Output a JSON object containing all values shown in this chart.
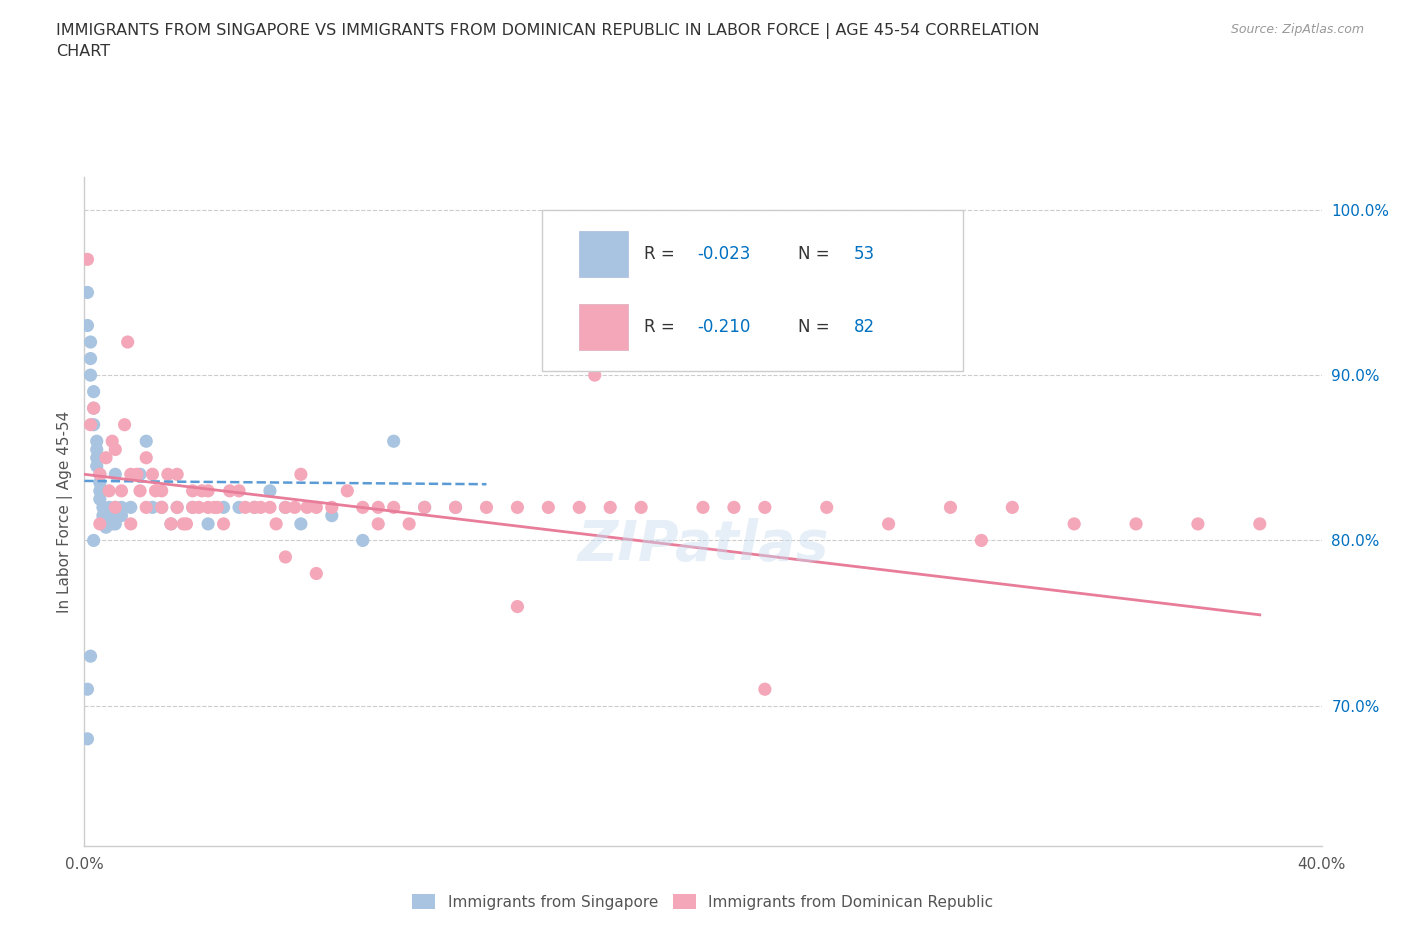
{
  "title": "IMMIGRANTS FROM SINGAPORE VS IMMIGRANTS FROM DOMINICAN REPUBLIC IN LABOR FORCE | AGE 45-54 CORRELATION\nCHART",
  "source": "Source: ZipAtlas.com",
  "ylabel": "In Labor Force | Age 45-54",
  "xlim": [
    0.0,
    0.4
  ],
  "ylim": [
    0.615,
    1.02
  ],
  "xticks": [
    0.0,
    0.05,
    0.1,
    0.15,
    0.2,
    0.25,
    0.3,
    0.35,
    0.4
  ],
  "ytick_labels_right": [
    "100.0%",
    "90.0%",
    "80.0%",
    "70.0%"
  ],
  "yticks_right": [
    1.0,
    0.9,
    0.8,
    0.7
  ],
  "series1_name": "Immigrants from Singapore",
  "series1_color": "#a8c4e0",
  "series1_line_color": "#5b9bd5",
  "series2_name": "Immigrants from Dominican Republic",
  "series2_color": "#f4a7b9",
  "series2_line_color": "#e87d9a",
  "watermark": "ZIPatlas",
  "background_color": "#ffffff",
  "series1_x": [
    0.001,
    0.001,
    0.002,
    0.002,
    0.002,
    0.003,
    0.003,
    0.003,
    0.004,
    0.004,
    0.004,
    0.004,
    0.005,
    0.005,
    0.005,
    0.005,
    0.006,
    0.006,
    0.007,
    0.007,
    0.008,
    0.008,
    0.009,
    0.009,
    0.01,
    0.01,
    0.01,
    0.012,
    0.012,
    0.015,
    0.018,
    0.02,
    0.022,
    0.025,
    0.028,
    0.03,
    0.035,
    0.04,
    0.045,
    0.05,
    0.055,
    0.06,
    0.065,
    0.07,
    0.08,
    0.09,
    0.1,
    0.11,
    0.12,
    0.002,
    0.001,
    0.001,
    0.003
  ],
  "series1_y": [
    0.95,
    0.93,
    0.92,
    0.91,
    0.9,
    0.89,
    0.88,
    0.87,
    0.86,
    0.855,
    0.85,
    0.845,
    0.84,
    0.835,
    0.83,
    0.825,
    0.82,
    0.815,
    0.81,
    0.808,
    0.82,
    0.815,
    0.815,
    0.81,
    0.84,
    0.82,
    0.81,
    0.82,
    0.815,
    0.82,
    0.84,
    0.86,
    0.82,
    0.82,
    0.81,
    0.82,
    0.82,
    0.81,
    0.82,
    0.82,
    0.82,
    0.83,
    0.82,
    0.81,
    0.815,
    0.8,
    0.86,
    0.82,
    0.82,
    0.73,
    0.71,
    0.68,
    0.8
  ],
  "series2_x": [
    0.001,
    0.002,
    0.003,
    0.005,
    0.005,
    0.007,
    0.008,
    0.009,
    0.01,
    0.01,
    0.012,
    0.013,
    0.014,
    0.015,
    0.015,
    0.017,
    0.018,
    0.02,
    0.02,
    0.022,
    0.023,
    0.025,
    0.025,
    0.027,
    0.028,
    0.03,
    0.03,
    0.032,
    0.033,
    0.035,
    0.035,
    0.037,
    0.038,
    0.04,
    0.04,
    0.042,
    0.043,
    0.045,
    0.047,
    0.05,
    0.052,
    0.055,
    0.057,
    0.06,
    0.062,
    0.065,
    0.068,
    0.07,
    0.072,
    0.075,
    0.08,
    0.085,
    0.09,
    0.095,
    0.1,
    0.105,
    0.11,
    0.12,
    0.13,
    0.14,
    0.15,
    0.16,
    0.17,
    0.18,
    0.2,
    0.21,
    0.22,
    0.24,
    0.26,
    0.28,
    0.3,
    0.32,
    0.34,
    0.36,
    0.38,
    0.14,
    0.095,
    0.165,
    0.22,
    0.065,
    0.075,
    0.29
  ],
  "series2_y": [
    0.97,
    0.87,
    0.88,
    0.84,
    0.81,
    0.85,
    0.83,
    0.86,
    0.855,
    0.82,
    0.83,
    0.87,
    0.92,
    0.84,
    0.81,
    0.84,
    0.83,
    0.85,
    0.82,
    0.84,
    0.83,
    0.83,
    0.82,
    0.84,
    0.81,
    0.84,
    0.82,
    0.81,
    0.81,
    0.83,
    0.82,
    0.82,
    0.83,
    0.83,
    0.82,
    0.82,
    0.82,
    0.81,
    0.83,
    0.83,
    0.82,
    0.82,
    0.82,
    0.82,
    0.81,
    0.82,
    0.82,
    0.84,
    0.82,
    0.82,
    0.82,
    0.83,
    0.82,
    0.82,
    0.82,
    0.81,
    0.82,
    0.82,
    0.82,
    0.82,
    0.82,
    0.82,
    0.82,
    0.82,
    0.82,
    0.82,
    0.82,
    0.82,
    0.81,
    0.82,
    0.82,
    0.81,
    0.81,
    0.81,
    0.81,
    0.76,
    0.81,
    0.9,
    0.71,
    0.79,
    0.78,
    0.8
  ]
}
